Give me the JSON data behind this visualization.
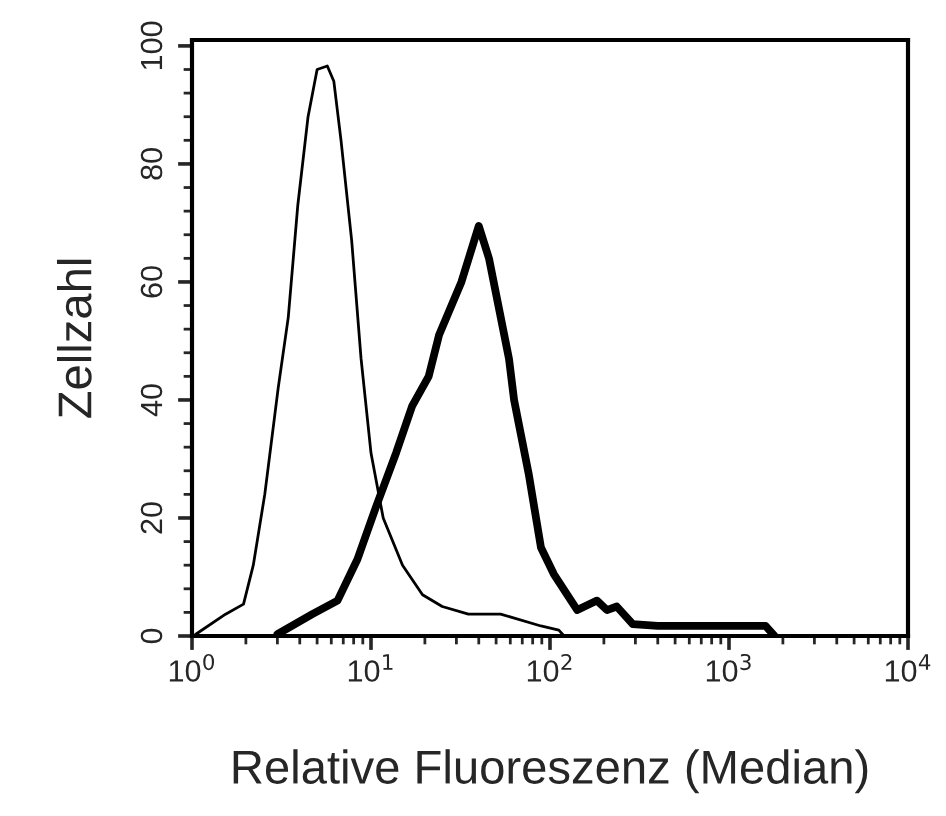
{
  "chart_data": {
    "type": "line",
    "xlabel": "Relative Fluoreszenz (Median)",
    "ylabel": "Zellzahl",
    "log": "x",
    "xlim": [
      1,
      10000
    ],
    "xticks": [
      {
        "value": 1,
        "label": "10$^{0}$"
      },
      {
        "value": 10,
        "label": "10$^{1}$"
      },
      {
        "value": 100,
        "label": "10$^{2}$"
      },
      {
        "value": 1000,
        "label": "10$^{3}$"
      },
      {
        "value": 10000,
        "label": "10$^{4}$"
      }
    ],
    "ylim": [
      0,
      101
    ],
    "yticks": [
      0,
      20,
      40,
      60,
      80,
      100
    ],
    "grid": false,
    "legend": false,
    "marker": "none",
    "line_style": "solid",
    "series": [
      {
        "color": "#000000",
        "x": [
          1.05,
          1.54,
          1.94,
          2.2,
          2.55,
          3.03,
          3.45,
          3.9,
          4.45,
          5.0,
          5.7,
          6.2,
          6.8,
          7.8,
          8.8,
          10,
          11.7,
          15,
          19.4,
          25,
          35,
          53,
          89,
          112,
          120
        ],
        "values": [
          0.3,
          3.7,
          5.4,
          12,
          24,
          42,
          54,
          73,
          88,
          96,
          96.6,
          94,
          84,
          67,
          47,
          31,
          20,
          12,
          7,
          5,
          3.7,
          3.7,
          1.7,
          1,
          0
        ]
      },
      {
        "color": "#000000",
        "x": [
          3,
          4.7,
          6.5,
          8.4,
          10.7,
          13.8,
          17,
          21,
          24,
          32,
          40,
          45.6,
          59,
          63,
          76,
          89,
          105,
          142,
          183,
          208,
          236,
          290,
          400,
          950,
          1600,
          1800
        ],
        "values": [
          0.3,
          3.7,
          6,
          13,
          22,
          31,
          39,
          44,
          51,
          60,
          69.5,
          64,
          47,
          40,
          27.5,
          15,
          10.5,
          4.4,
          6,
          4.4,
          5,
          2,
          1.7,
          1.7,
          1.7,
          0
        ]
      }
    ]
  }
}
